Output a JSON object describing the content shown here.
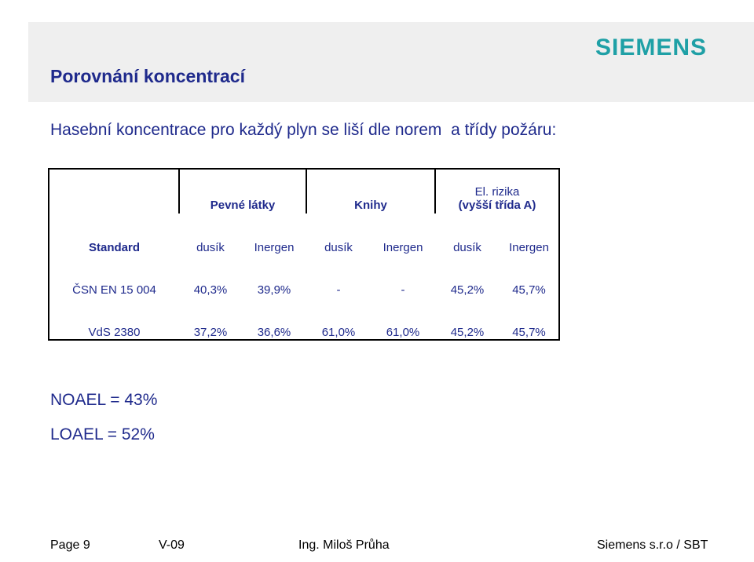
{
  "header": {
    "title": "Porovnání koncentrací",
    "logo_text": "SIEMENS"
  },
  "intro": "Hasební koncentrace pro každý plyn se liší dle norem  a třídy požáru:",
  "table": {
    "groups": [
      {
        "label": "Pevné látky"
      },
      {
        "label": "Knihy"
      },
      {
        "label_line1": "El. rizika",
        "label_line2": "(vyšší třída A)"
      }
    ],
    "subheader": {
      "label": "Standard",
      "cells": [
        "dusík",
        "Inergen",
        "dusík",
        "Inergen",
        "dusík",
        "Inergen"
      ]
    },
    "rows": [
      {
        "label": "ČSN EN 15 004",
        "cells": [
          "40,3%",
          "39,9%",
          "-",
          "-",
          "45,2%",
          "45,7%"
        ]
      },
      {
        "label": "VdS 2380",
        "cells": [
          "37,2%",
          "36,6%",
          "61,0%",
          "61,0%",
          "45,2%",
          "45,7%"
        ]
      }
    ]
  },
  "notes": {
    "noael": "NOAEL = 43%",
    "loael": "LOAEL = 52%"
  },
  "footer": {
    "page": "Page 9",
    "version": "V-09",
    "author": "Ing. Miloš Průha",
    "company": "Siemens s.r.o / SBT"
  }
}
